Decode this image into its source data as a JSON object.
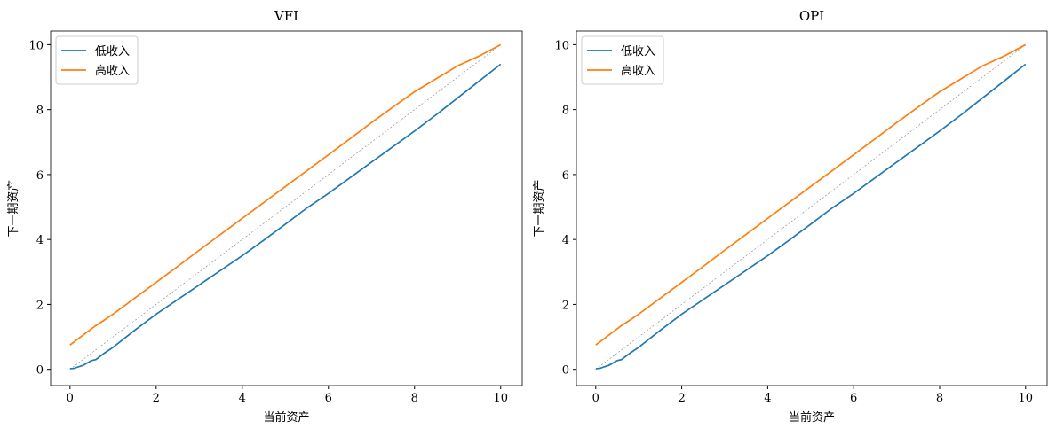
{
  "chart_data": [
    {
      "type": "line",
      "title": "VFI",
      "xlabel": "当前资产",
      "ylabel": "下一期资产",
      "x": [
        0,
        0.1,
        0.2,
        0.3,
        0.5,
        0.6,
        0.8,
        1,
        1.5,
        2,
        2.5,
        3,
        3.5,
        4,
        4.5,
        5,
        5.5,
        6,
        6.5,
        7,
        7.5,
        8,
        8.5,
        9,
        9.5,
        10
      ],
      "series": [
        {
          "name": "低收入",
          "color": "#1f77b4",
          "values": [
            0.02,
            0.03,
            0.08,
            0.12,
            0.27,
            0.3,
            0.5,
            0.68,
            1.2,
            1.7,
            2.15,
            2.6,
            3.05,
            3.5,
            3.98,
            4.47,
            4.97,
            5.42,
            5.9,
            6.38,
            6.86,
            7.34,
            7.84,
            8.36,
            8.88,
            9.4
          ]
        },
        {
          "name": "高收入",
          "color": "#ff7f0e",
          "values": [
            0.75,
            0.85,
            0.95,
            1.05,
            1.25,
            1.35,
            1.52,
            1.7,
            2.19,
            2.68,
            3.17,
            3.67,
            4.16,
            4.65,
            5.14,
            5.63,
            6.12,
            6.61,
            7.1,
            7.6,
            8.08,
            8.55,
            8.95,
            9.35,
            9.65,
            10.0
          ]
        }
      ],
      "diagonal": {
        "x": [
          0,
          10
        ],
        "values": [
          0,
          10
        ],
        "color": "#808080"
      },
      "xlim": [
        -0.45,
        10.5
      ],
      "ylim": [
        -0.5,
        10.42
      ],
      "xticks": [
        0,
        2,
        4,
        6,
        8,
        10
      ],
      "yticks": [
        0,
        2,
        4,
        6,
        8,
        10
      ],
      "legend": "upper-left"
    },
    {
      "type": "line",
      "title": "OPI",
      "xlabel": "当前资产",
      "ylabel": "下一期资产",
      "x": [
        0,
        0.1,
        0.2,
        0.3,
        0.5,
        0.6,
        0.8,
        1,
        1.5,
        2,
        2.5,
        3,
        3.5,
        4,
        4.5,
        5,
        5.5,
        6,
        6.5,
        7,
        7.5,
        8,
        8.5,
        9,
        9.5,
        10
      ],
      "series": [
        {
          "name": "低收入",
          "color": "#1f77b4",
          "values": [
            0.02,
            0.03,
            0.08,
            0.12,
            0.27,
            0.3,
            0.5,
            0.68,
            1.2,
            1.7,
            2.15,
            2.6,
            3.05,
            3.5,
            3.98,
            4.47,
            4.97,
            5.42,
            5.9,
            6.38,
            6.86,
            7.34,
            7.84,
            8.36,
            8.88,
            9.4
          ]
        },
        {
          "name": "高收入",
          "color": "#ff7f0e",
          "values": [
            0.75,
            0.85,
            0.95,
            1.05,
            1.25,
            1.35,
            1.52,
            1.7,
            2.19,
            2.68,
            3.17,
            3.67,
            4.16,
            4.65,
            5.14,
            5.63,
            6.12,
            6.61,
            7.1,
            7.6,
            8.08,
            8.55,
            8.95,
            9.35,
            9.65,
            10.0
          ]
        }
      ],
      "diagonal": {
        "x": [
          0,
          10
        ],
        "values": [
          0,
          10
        ],
        "color": "#808080"
      },
      "xlim": [
        -0.45,
        10.5
      ],
      "ylim": [
        -0.5,
        10.42
      ],
      "xticks": [
        0,
        2,
        4,
        6,
        8,
        10
      ],
      "yticks": [
        0,
        2,
        4,
        6,
        8,
        10
      ],
      "legend": "upper-left"
    }
  ]
}
